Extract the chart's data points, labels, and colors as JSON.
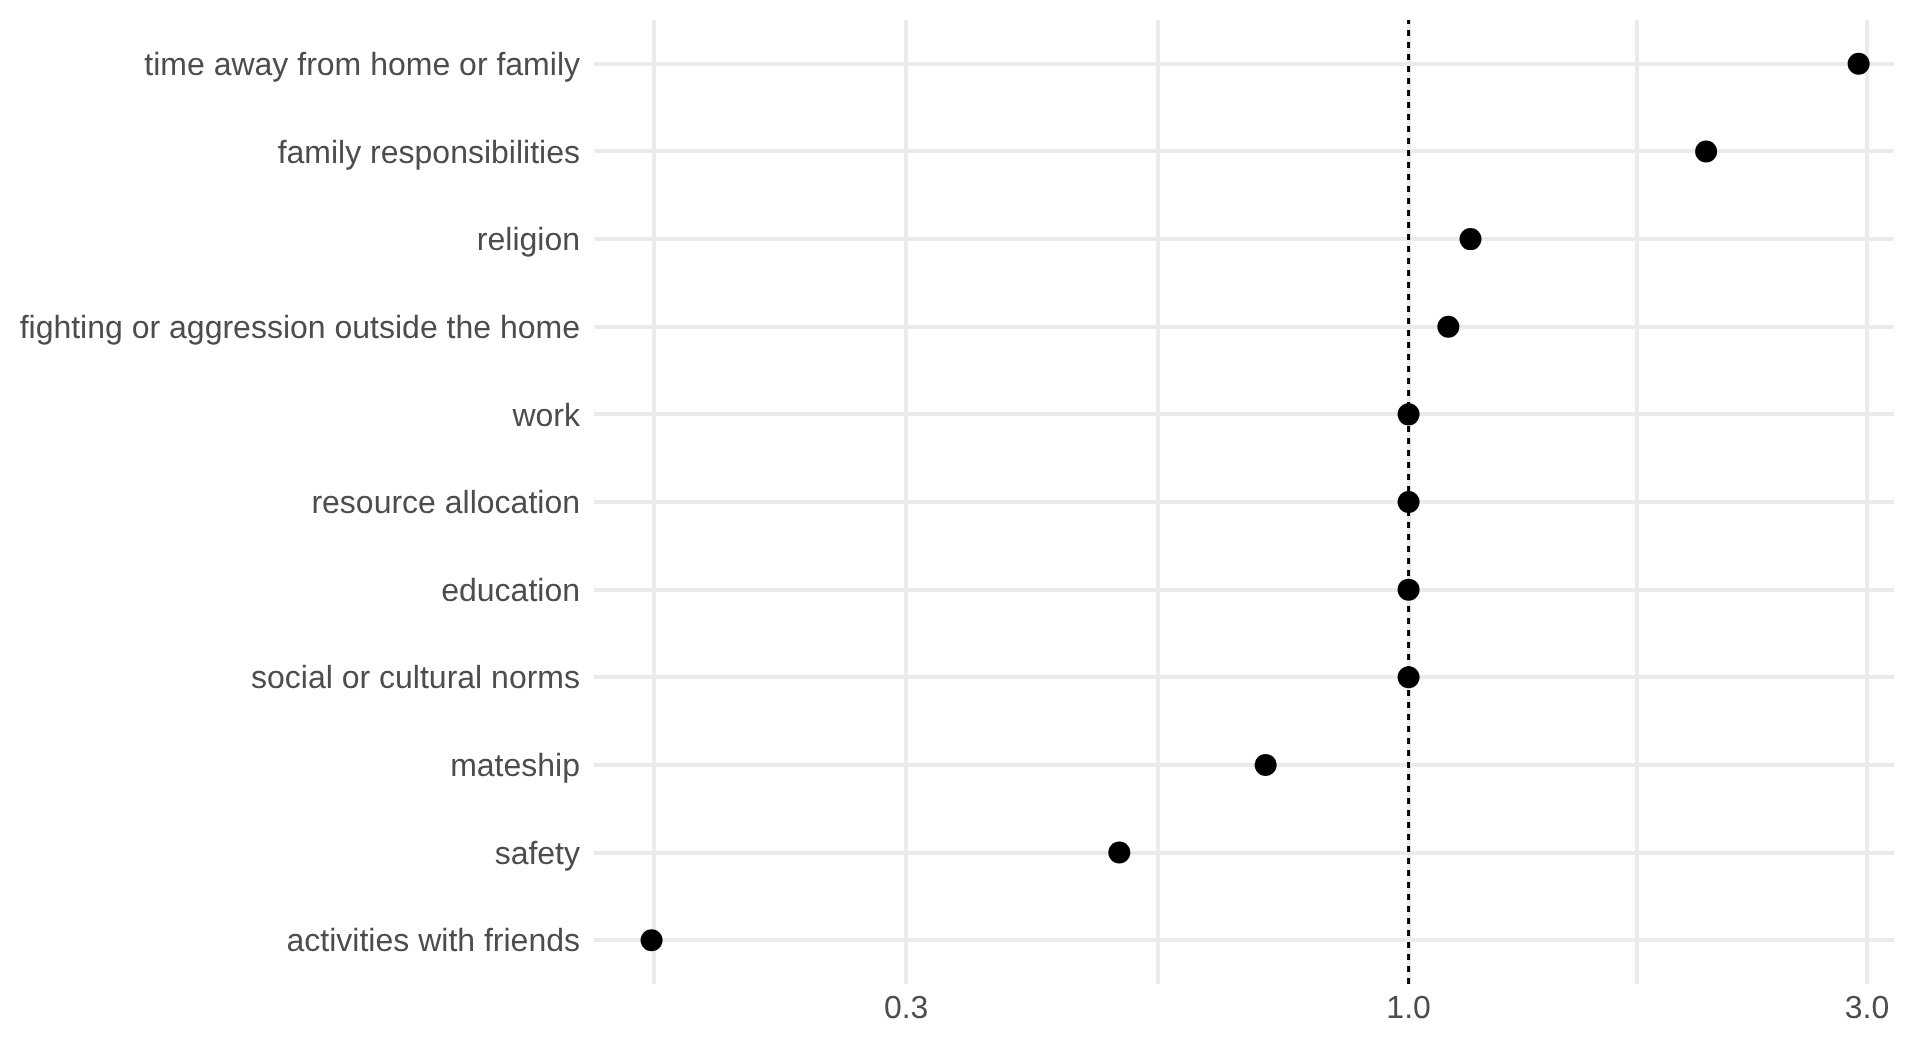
{
  "chart_data": {
    "type": "scatter",
    "orientation": "horizontal",
    "log": "x",
    "categories": [
      "time away from home or family",
      "family responsibilities",
      "religion",
      "fighting or aggression outside the home",
      "work",
      "resource allocation",
      "education",
      "social or cultural norms",
      "mateship",
      "safety",
      "activities with friends"
    ],
    "values": [
      2.94,
      2.04,
      1.16,
      1.1,
      1.0,
      1.0,
      1.0,
      1.0,
      0.71,
      0.5,
      0.163
    ],
    "color": "#000000",
    "marker": "circle",
    "xlim": [
      0.142,
      3.2
    ],
    "xticks": [
      {
        "value": 0.164,
        "label": null
      },
      0.3,
      {
        "value": 0.548,
        "label": null
      },
      {
        "value": 1.0,
        "label": "1.0"
      },
      {
        "value": 1.73,
        "label": null
      },
      {
        "value": 3.0,
        "label": "3.0"
      }
    ],
    "grid": true,
    "ref_lines": [
      {
        "axis": "x",
        "value": 1.0,
        "label": null,
        "color": "#000000",
        "line_style": "dotted"
      }
    ]
  }
}
